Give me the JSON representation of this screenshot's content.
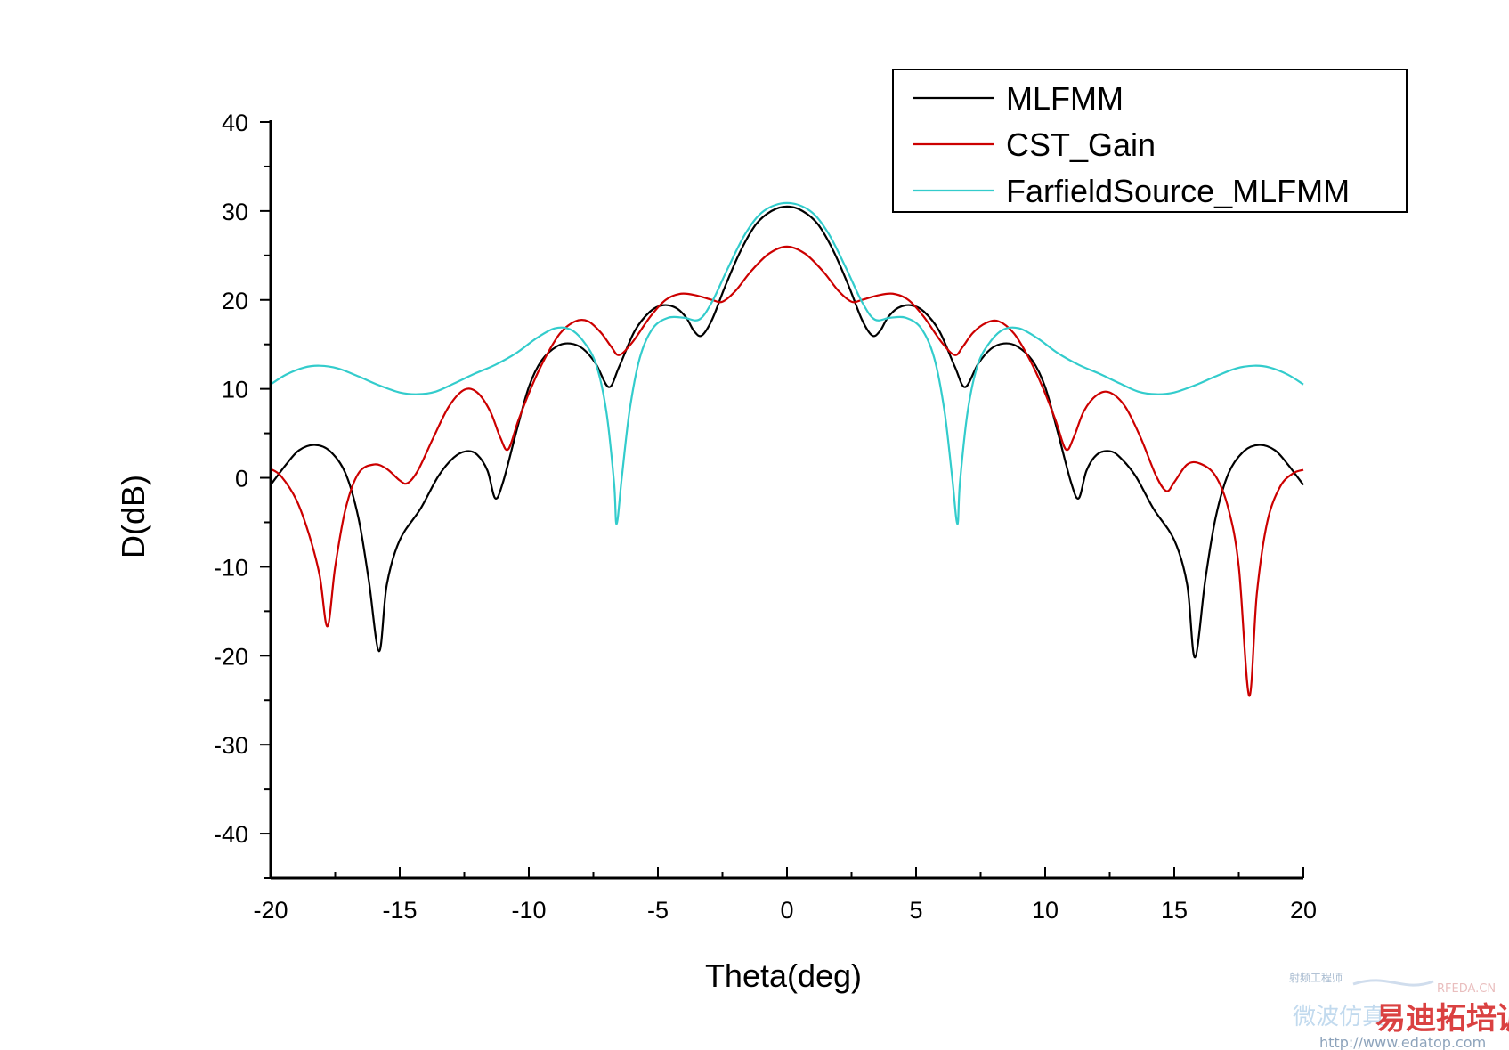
{
  "chart_data": {
    "type": "line",
    "xlabel": "Theta(deg)",
    "ylabel": "D(dB)",
    "xlim": [
      -20,
      20
    ],
    "ylim": [
      -45,
      40
    ],
    "xticks": [
      -20,
      -15,
      -10,
      -5,
      0,
      5,
      10,
      15,
      20
    ],
    "yticks": [
      40,
      30,
      20,
      10,
      0,
      -10,
      -20,
      -30,
      -40
    ],
    "xtick_labels": [
      "-20",
      "-15",
      "-10",
      "-5",
      "0",
      "5",
      "10",
      "15",
      "20"
    ],
    "ytick_labels": [
      "40",
      "30",
      "20",
      "10",
      "0",
      "-10",
      "-20",
      "-30",
      "-40"
    ],
    "grid": false,
    "legend_position": "top-right",
    "series": [
      {
        "name": "MLFMM",
        "color": "#000000",
        "points": [
          [
            -20,
            -0.8
          ],
          [
            -19.4,
            1.5
          ],
          [
            -18.9,
            3.1
          ],
          [
            -18.3,
            3.7
          ],
          [
            -17.7,
            3.0
          ],
          [
            -17.1,
            0.5
          ],
          [
            -16.6,
            -4.5
          ],
          [
            -16.2,
            -11.5
          ],
          [
            -15.8,
            -19.5
          ],
          [
            -15.5,
            -12
          ],
          [
            -15.0,
            -7
          ],
          [
            -14.2,
            -3.5
          ],
          [
            -13.5,
            0.2
          ],
          [
            -12.9,
            2.3
          ],
          [
            -12.4,
            3.0
          ],
          [
            -12.0,
            2.6
          ],
          [
            -11.6,
            0.8
          ],
          [
            -11.3,
            -2.3
          ],
          [
            -11.0,
            -0.5
          ],
          [
            -10.5,
            5
          ],
          [
            -10.0,
            10.2
          ],
          [
            -9.5,
            13.2
          ],
          [
            -8.9,
            14.8
          ],
          [
            -8.4,
            15.1
          ],
          [
            -7.9,
            14.5
          ],
          [
            -7.4,
            12.8
          ],
          [
            -6.9,
            10.2
          ],
          [
            -6.5,
            12.5
          ],
          [
            -5.9,
            16.5
          ],
          [
            -5.3,
            18.7
          ],
          [
            -4.8,
            19.4
          ],
          [
            -4.3,
            19.1
          ],
          [
            -3.9,
            18.0
          ],
          [
            -3.6,
            16.5
          ],
          [
            -3.3,
            16.0
          ],
          [
            -2.9,
            17.8
          ],
          [
            -2.4,
            21.5
          ],
          [
            -1.8,
            25.5
          ],
          [
            -1.2,
            28.5
          ],
          [
            -0.6,
            30.0
          ],
          [
            0,
            30.5
          ],
          [
            0.6,
            30.0
          ],
          [
            1.2,
            28.5
          ],
          [
            1.8,
            25.5
          ],
          [
            2.4,
            21.5
          ],
          [
            2.9,
            17.8
          ],
          [
            3.3,
            16.0
          ],
          [
            3.6,
            16.5
          ],
          [
            3.9,
            18.0
          ],
          [
            4.3,
            19.1
          ],
          [
            4.8,
            19.4
          ],
          [
            5.3,
            18.7
          ],
          [
            5.9,
            16.5
          ],
          [
            6.5,
            12.5
          ],
          [
            6.9,
            10.2
          ],
          [
            7.4,
            12.8
          ],
          [
            7.9,
            14.5
          ],
          [
            8.4,
            15.1
          ],
          [
            8.9,
            14.8
          ],
          [
            9.5,
            13.2
          ],
          [
            10.0,
            10.2
          ],
          [
            10.5,
            5
          ],
          [
            11.0,
            -0.5
          ],
          [
            11.3,
            -2.3
          ],
          [
            11.6,
            0.8
          ],
          [
            12.0,
            2.6
          ],
          [
            12.5,
            3.0
          ],
          [
            12.9,
            2.3
          ],
          [
            13.5,
            0.2
          ],
          [
            14.2,
            -3.5
          ],
          [
            15.0,
            -7
          ],
          [
            15.5,
            -12
          ],
          [
            15.8,
            -20.2
          ],
          [
            16.2,
            -11.5
          ],
          [
            16.6,
            -4.5
          ],
          [
            17.1,
            0.5
          ],
          [
            17.7,
            3.0
          ],
          [
            18.3,
            3.7
          ],
          [
            18.9,
            3.1
          ],
          [
            19.4,
            1.5
          ],
          [
            20,
            -0.8
          ]
        ]
      },
      {
        "name": "CST_Gain",
        "color": "#cc0000",
        "points": [
          [
            -20,
            1.0
          ],
          [
            -19.6,
            0.2
          ],
          [
            -19.0,
            -2.5
          ],
          [
            -18.5,
            -6.5
          ],
          [
            -18.1,
            -11
          ],
          [
            -17.8,
            -16.7
          ],
          [
            -17.5,
            -10
          ],
          [
            -17.1,
            -3.5
          ],
          [
            -16.6,
            0.5
          ],
          [
            -16.0,
            1.5
          ],
          [
            -15.5,
            1.0
          ],
          [
            -15.0,
            -0.3
          ],
          [
            -14.7,
            -0.6
          ],
          [
            -14.3,
            0.8
          ],
          [
            -13.7,
            4.5
          ],
          [
            -13.1,
            8.0
          ],
          [
            -12.5,
            9.9
          ],
          [
            -12.0,
            9.6
          ],
          [
            -11.5,
            7.5
          ],
          [
            -11.1,
            4.5
          ],
          [
            -10.8,
            3.2
          ],
          [
            -10.4,
            6.5
          ],
          [
            -9.9,
            10.2
          ],
          [
            -9.4,
            13.3
          ],
          [
            -8.8,
            16.2
          ],
          [
            -8.2,
            17.6
          ],
          [
            -7.7,
            17.6
          ],
          [
            -7.2,
            16.3
          ],
          [
            -6.8,
            14.7
          ],
          [
            -6.5,
            13.8
          ],
          [
            -6.0,
            15.2
          ],
          [
            -5.3,
            18.1
          ],
          [
            -4.7,
            20.0
          ],
          [
            -4.1,
            20.7
          ],
          [
            -3.5,
            20.5
          ],
          [
            -2.9,
            20.0
          ],
          [
            -2.5,
            19.8
          ],
          [
            -2.0,
            21.0
          ],
          [
            -1.4,
            23.2
          ],
          [
            -0.7,
            25.2
          ],
          [
            0,
            26.0
          ],
          [
            0.7,
            25.2
          ],
          [
            1.4,
            23.2
          ],
          [
            2.0,
            21.0
          ],
          [
            2.5,
            19.8
          ],
          [
            2.9,
            20.0
          ],
          [
            3.5,
            20.5
          ],
          [
            4.1,
            20.7
          ],
          [
            4.7,
            20.0
          ],
          [
            5.3,
            18.1
          ],
          [
            6.0,
            15.2
          ],
          [
            6.5,
            13.8
          ],
          [
            6.8,
            14.7
          ],
          [
            7.2,
            16.3
          ],
          [
            7.7,
            17.4
          ],
          [
            8.2,
            17.6
          ],
          [
            8.8,
            16.2
          ],
          [
            9.4,
            13.3
          ],
          [
            9.9,
            10.2
          ],
          [
            10.4,
            6.5
          ],
          [
            10.8,
            3.2
          ],
          [
            11.1,
            4.5
          ],
          [
            11.5,
            7.5
          ],
          [
            12.0,
            9.3
          ],
          [
            12.5,
            9.6
          ],
          [
            13.1,
            8.0
          ],
          [
            13.7,
            4.5
          ],
          [
            14.3,
            0.2
          ],
          [
            14.7,
            -1.5
          ],
          [
            15.0,
            -0.5
          ],
          [
            15.5,
            1.5
          ],
          [
            16.0,
            1.6
          ],
          [
            16.6,
            0.2
          ],
          [
            17.1,
            -3.5
          ],
          [
            17.5,
            -10
          ],
          [
            17.9,
            -24.5
          ],
          [
            18.2,
            -13
          ],
          [
            18.6,
            -5
          ],
          [
            19.1,
            -1.0
          ],
          [
            19.6,
            0.5
          ],
          [
            20,
            0.9
          ]
        ]
      },
      {
        "name": "FarfieldSource_MLFMM",
        "color": "#33cccc",
        "points": [
          [
            -20,
            10.5
          ],
          [
            -19.4,
            11.6
          ],
          [
            -18.7,
            12.4
          ],
          [
            -18.1,
            12.6
          ],
          [
            -17.4,
            12.3
          ],
          [
            -16.6,
            11.4
          ],
          [
            -15.8,
            10.4
          ],
          [
            -15.0,
            9.6
          ],
          [
            -14.3,
            9.4
          ],
          [
            -13.6,
            9.7
          ],
          [
            -12.9,
            10.6
          ],
          [
            -12.1,
            11.7
          ],
          [
            -11.3,
            12.7
          ],
          [
            -10.5,
            14.0
          ],
          [
            -9.7,
            15.7
          ],
          [
            -9.0,
            16.8
          ],
          [
            -8.4,
            16.7
          ],
          [
            -7.9,
            15.4
          ],
          [
            -7.4,
            12.8
          ],
          [
            -7.0,
            7.5
          ],
          [
            -6.7,
            -0.5
          ],
          [
            -6.6,
            -5.2
          ],
          [
            -6.4,
            0
          ],
          [
            -6.1,
            7.5
          ],
          [
            -5.7,
            13.5
          ],
          [
            -5.2,
            16.8
          ],
          [
            -4.6,
            18.0
          ],
          [
            -4.0,
            18.0
          ],
          [
            -3.4,
            17.8
          ],
          [
            -2.9,
            19.8
          ],
          [
            -2.3,
            23.5
          ],
          [
            -1.6,
            27.5
          ],
          [
            -0.9,
            30.0
          ],
          [
            0,
            30.9
          ],
          [
            0.9,
            30.0
          ],
          [
            1.6,
            27.5
          ],
          [
            2.3,
            23.5
          ],
          [
            2.9,
            19.8
          ],
          [
            3.4,
            17.8
          ],
          [
            4.0,
            18.0
          ],
          [
            4.6,
            18.0
          ],
          [
            5.2,
            16.8
          ],
          [
            5.7,
            13.5
          ],
          [
            6.1,
            7.5
          ],
          [
            6.4,
            0
          ],
          [
            6.6,
            -5.2
          ],
          [
            6.7,
            -0.5
          ],
          [
            7.0,
            7.5
          ],
          [
            7.4,
            12.8
          ],
          [
            7.9,
            15.4
          ],
          [
            8.4,
            16.7
          ],
          [
            9.0,
            16.8
          ],
          [
            9.7,
            15.7
          ],
          [
            10.5,
            14.0
          ],
          [
            11.3,
            12.7
          ],
          [
            12.1,
            11.7
          ],
          [
            12.9,
            10.6
          ],
          [
            13.6,
            9.7
          ],
          [
            14.3,
            9.4
          ],
          [
            15.0,
            9.6
          ],
          [
            15.8,
            10.4
          ],
          [
            16.6,
            11.4
          ],
          [
            17.4,
            12.3
          ],
          [
            18.1,
            12.6
          ],
          [
            18.7,
            12.4
          ],
          [
            19.4,
            11.6
          ],
          [
            20,
            10.5
          ]
        ]
      }
    ]
  },
  "watermark": {
    "line1": "射频工程师",
    "line2": "微波仿真",
    "brand": "易迪拓培训",
    "site": "RFEDA.CN",
    "url": "http://www.edatop.com"
  }
}
